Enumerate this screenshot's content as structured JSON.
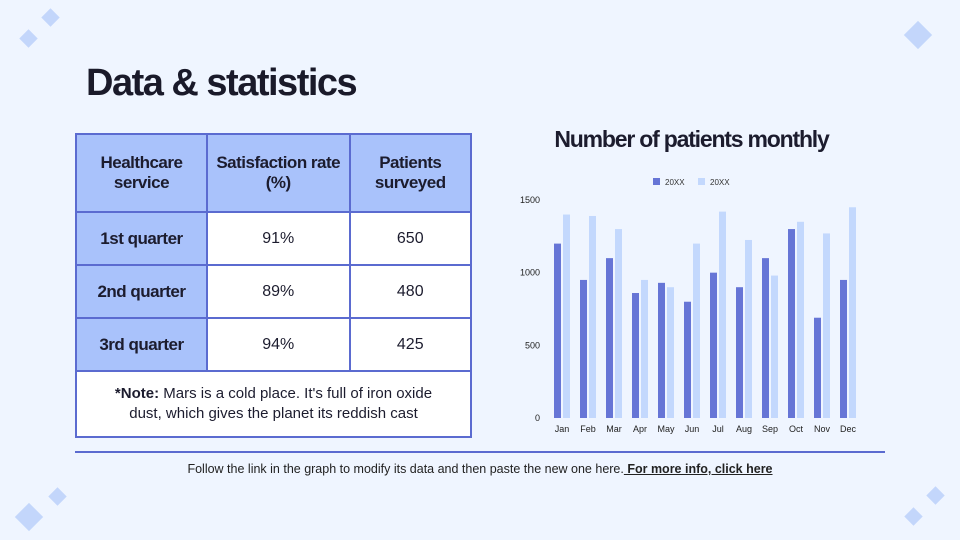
{
  "title": "Data & statistics",
  "table": {
    "headers": [
      "Healthcare service",
      "Satisfaction rate (%)",
      "Patients surveyed"
    ],
    "rows": [
      [
        "1st quarter",
        "91%",
        "650"
      ],
      [
        "2nd quarter",
        "89%",
        "480"
      ],
      [
        "3rd quarter",
        "94%",
        "425"
      ]
    ],
    "note_label": "*Note:",
    "note_text": " Mars is a cold place. It's full of iron oxide dust, which gives the planet its reddish cast"
  },
  "footer": {
    "text": "Follow the link in the graph to modify its data and then paste the new one here.",
    "link": " For more info, click here"
  },
  "colors": {
    "series1": "#6675d6",
    "series2": "#c3d8fd",
    "accent": "#5b6bd0",
    "header_fill": "#a9c2fb"
  },
  "chart_data": {
    "type": "bar",
    "title": "Number of patients monthly",
    "categories": [
      "Jan",
      "Feb",
      "Mar",
      "Apr",
      "May",
      "Jun",
      "Jul",
      "Aug",
      "Sep",
      "Oct",
      "Nov",
      "Dec"
    ],
    "series": [
      {
        "name": "20XX",
        "values": [
          1200,
          950,
          1100,
          860,
          930,
          800,
          1000,
          900,
          1100,
          1300,
          690,
          950
        ]
      },
      {
        "name": "20XX",
        "values": [
          1400,
          1390,
          1300,
          950,
          900,
          1200,
          1420,
          1225,
          980,
          1350,
          1270,
          1450
        ]
      }
    ],
    "yticks": [
      0,
      500,
      1000,
      1500
    ],
    "ylim": [
      0,
      1500
    ],
    "grid": false,
    "legend": "top"
  }
}
